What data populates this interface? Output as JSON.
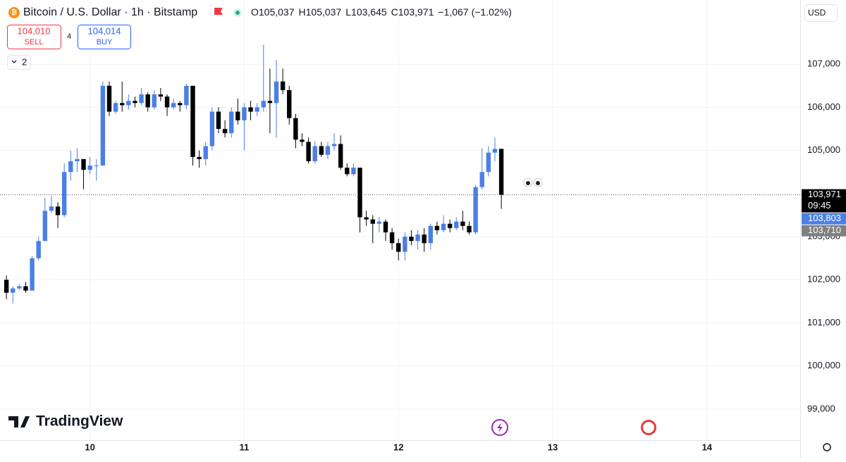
{
  "header": {
    "title": "Bitcoin / U.S. Dollar · 1h · Bitstamp",
    "ohlc": [
      {
        "label": "O",
        "value": "105,037"
      },
      {
        "label": "H",
        "value": "105,037"
      },
      {
        "label": "L",
        "value": "103,645"
      },
      {
        "label": "C",
        "value": "103,971"
      }
    ],
    "change": "−1,067",
    "change_pct": "(−1.02%)",
    "sell": {
      "price": "104,010",
      "label": "SELL"
    },
    "spread": "4",
    "buy": {
      "price": "104,014",
      "label": "BUY"
    },
    "indicators": "2",
    "currency": "USD",
    "brand": "TradingView"
  },
  "chart_data": {
    "type": "candlestick",
    "up_color": "#4a7fe6",
    "down_color": "#000000",
    "grid": true,
    "xlim": [
      -14,
      110.5
    ],
    "xticks": [
      {
        "value": 0,
        "label": "10"
      },
      {
        "value": 24,
        "label": "11"
      },
      {
        "value": 48,
        "label": "12"
      },
      {
        "value": 72,
        "label": "13"
      },
      {
        "value": 96,
        "label": "14"
      }
    ],
    "ylim": [
      98280,
      108490
    ],
    "yticks": [
      {
        "value": 99000,
        "label": "99,000"
      },
      {
        "value": 100000,
        "label": "100,000"
      },
      {
        "value": 101000,
        "label": "101,000"
      },
      {
        "value": 102000,
        "label": "102,000"
      },
      {
        "value": 103000,
        "label": "103,000"
      },
      {
        "value": 104000,
        "label": "104,000"
      },
      {
        "value": 105000,
        "label": "105,000"
      },
      {
        "value": 106000,
        "label": "106,000"
      },
      {
        "value": 107000,
        "label": "107,000"
      }
    ],
    "x": [
      -13,
      -12,
      -11,
      -10,
      -9,
      -8,
      -7,
      -6,
      -5,
      -4,
      -3,
      -2,
      -1,
      0,
      1,
      2,
      3,
      4,
      5,
      6,
      7,
      8,
      9,
      10,
      11,
      12,
      13,
      14,
      15,
      16,
      17,
      18,
      19,
      20,
      21,
      22,
      23,
      24,
      25,
      26,
      27,
      28,
      29,
      30,
      31,
      32,
      33,
      34,
      35,
      36,
      37,
      38,
      39,
      40,
      41,
      42,
      43,
      44,
      45,
      46,
      47,
      48,
      49,
      50,
      51,
      52,
      53,
      54,
      55,
      56,
      57,
      58,
      59,
      60,
      61,
      62,
      63,
      64
    ],
    "open": [
      102000,
      101700,
      101800,
      101850,
      101750,
      102500,
      102900,
      103600,
      103700,
      103500,
      104500,
      104750,
      104800,
      104550,
      104650,
      104650,
      106500,
      105900,
      106100,
      106050,
      106150,
      106100,
      106300,
      106000,
      106300,
      106250,
      106000,
      106100,
      106050,
      106500,
      104850,
      104800,
      105100,
      105900,
      105500,
      105400,
      105900,
      105700,
      106000,
      105900,
      106000,
      106150,
      106100,
      106600,
      106400,
      105750,
      105250,
      105200,
      104750,
      105100,
      104900,
      105100,
      105150,
      104600,
      104450,
      104600,
      103450,
      103400,
      103300,
      103350,
      103100,
      102850,
      102650,
      103000,
      102900,
      103050,
      102850,
      103250,
      103150,
      103300,
      103200,
      103350,
      103250,
      103100,
      104150,
      104500,
      104950,
      105037
    ],
    "high": [
      102100,
      101850,
      101900,
      101950,
      102550,
      103000,
      103900,
      103950,
      103800,
      104700,
      105000,
      105050,
      104800,
      104850,
      104800,
      106600,
      106600,
      106150,
      106600,
      106300,
      106250,
      106450,
      106350,
      106400,
      106450,
      106300,
      106200,
      106150,
      106550,
      106500,
      105000,
      105200,
      106000,
      106000,
      105700,
      106000,
      106200,
      106100,
      106150,
      106100,
      107450,
      106900,
      107100,
      106900,
      106500,
      105850,
      105400,
      105300,
      105200,
      105200,
      105200,
      105400,
      105350,
      104700,
      104700,
      104600,
      103600,
      103500,
      103450,
      103400,
      103200,
      102950,
      103100,
      103150,
      103150,
      103200,
      103300,
      103350,
      103500,
      103400,
      103450,
      103600,
      103350,
      104200,
      105050,
      105100,
      105300,
      105037
    ],
    "low": [
      101550,
      101450,
      101750,
      101700,
      101750,
      102450,
      102900,
      103550,
      103200,
      103450,
      104300,
      104500,
      104100,
      104450,
      104300,
      104650,
      105800,
      105850,
      105900,
      105950,
      106000,
      106050,
      105900,
      105950,
      106150,
      105800,
      105950,
      105900,
      105950,
      104650,
      104600,
      104650,
      105000,
      105400,
      105300,
      105300,
      105600,
      105000,
      105700,
      105800,
      105900,
      105400,
      105300,
      106300,
      105600,
      105050,
      105100,
      104700,
      104700,
      104850,
      104800,
      105000,
      104550,
      104400,
      104400,
      103100,
      103250,
      102850,
      103100,
      102900,
      102700,
      102450,
      102450,
      102800,
      102700,
      102650,
      102700,
      103050,
      103100,
      103100,
      103150,
      103150,
      103050,
      103050,
      104100,
      104400,
      104750,
      103645
    ],
    "close": [
      101700,
      101800,
      101850,
      101750,
      102500,
      102900,
      103600,
      103700,
      103500,
      104500,
      104750,
      104800,
      104550,
      104650,
      104650,
      106500,
      105900,
      106100,
      106050,
      106150,
      106100,
      106300,
      106000,
      106300,
      106250,
      106000,
      106100,
      106050,
      106500,
      104850,
      104800,
      105100,
      105900,
      105500,
      105400,
      105900,
      105700,
      106000,
      105900,
      106000,
      106150,
      106100,
      106600,
      106400,
      105750,
      105250,
      105200,
      104750,
      105100,
      104900,
      105100,
      105150,
      104600,
      104450,
      104600,
      103450,
      103400,
      103300,
      103350,
      103100,
      102850,
      102650,
      103000,
      102900,
      103050,
      102850,
      103250,
      103150,
      103300,
      103200,
      103350,
      103250,
      103100,
      104150,
      104500,
      104950,
      105037,
      103971
    ],
    "price_labels": [
      {
        "value": 103971,
        "label": "103,971",
        "color": "#000000"
      },
      {
        "value": 103803,
        "label": "103,803",
        "color": "#4a7fe6"
      },
      {
        "value": 103710,
        "label": "103,710",
        "color": "#808080"
      }
    ],
    "countdown": "09:45"
  }
}
